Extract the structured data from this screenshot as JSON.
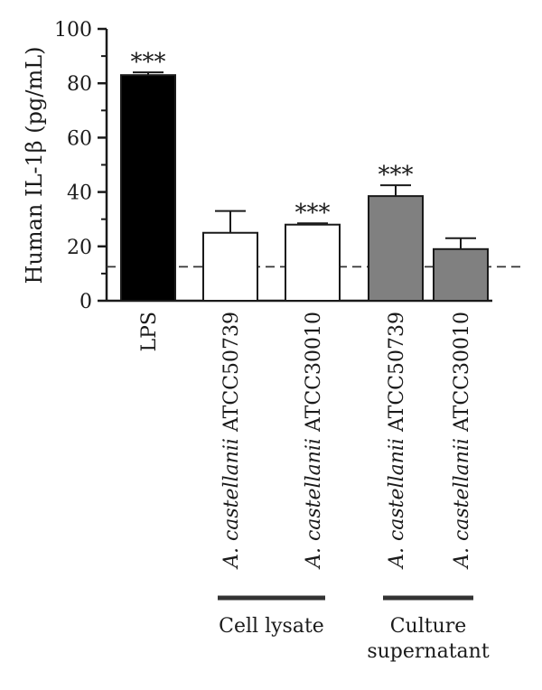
{
  "chart_data": {
    "type": "bar",
    "ylabel": "Human IL-1β (pg/mL)",
    "ylim": [
      0,
      100
    ],
    "yticks": [
      0,
      20,
      40,
      60,
      80,
      100
    ],
    "baseline_dashed": 12.5,
    "grid": false,
    "bars": [
      {
        "label": "LPS",
        "italic_prefix": "",
        "value": 83,
        "error": 1,
        "significance": "***",
        "color": "#000000"
      },
      {
        "label": " ATCC50739",
        "italic_prefix": "A. castellanii",
        "value": 25,
        "error": 8,
        "significance": "",
        "color": "#ffffff"
      },
      {
        "label": " ATCC30010",
        "italic_prefix": "A. castellanii",
        "value": 28,
        "error": 0.5,
        "significance": "***",
        "color": "#ffffff"
      },
      {
        "label": " ATCC50739",
        "italic_prefix": "A. castellanii",
        "value": 38.5,
        "error": 4,
        "significance": "***",
        "color": "#808080"
      },
      {
        "label": " ATCC30010",
        "italic_prefix": "A. castellanii",
        "value": 19,
        "error": 4,
        "significance": "",
        "color": "#808080"
      }
    ],
    "groups": [
      {
        "lines": [
          "Cell lysate"
        ],
        "bars": [
          1,
          2
        ]
      },
      {
        "lines": [
          "Culture",
          "supernatant"
        ],
        "bars": [
          3,
          4
        ]
      }
    ]
  }
}
